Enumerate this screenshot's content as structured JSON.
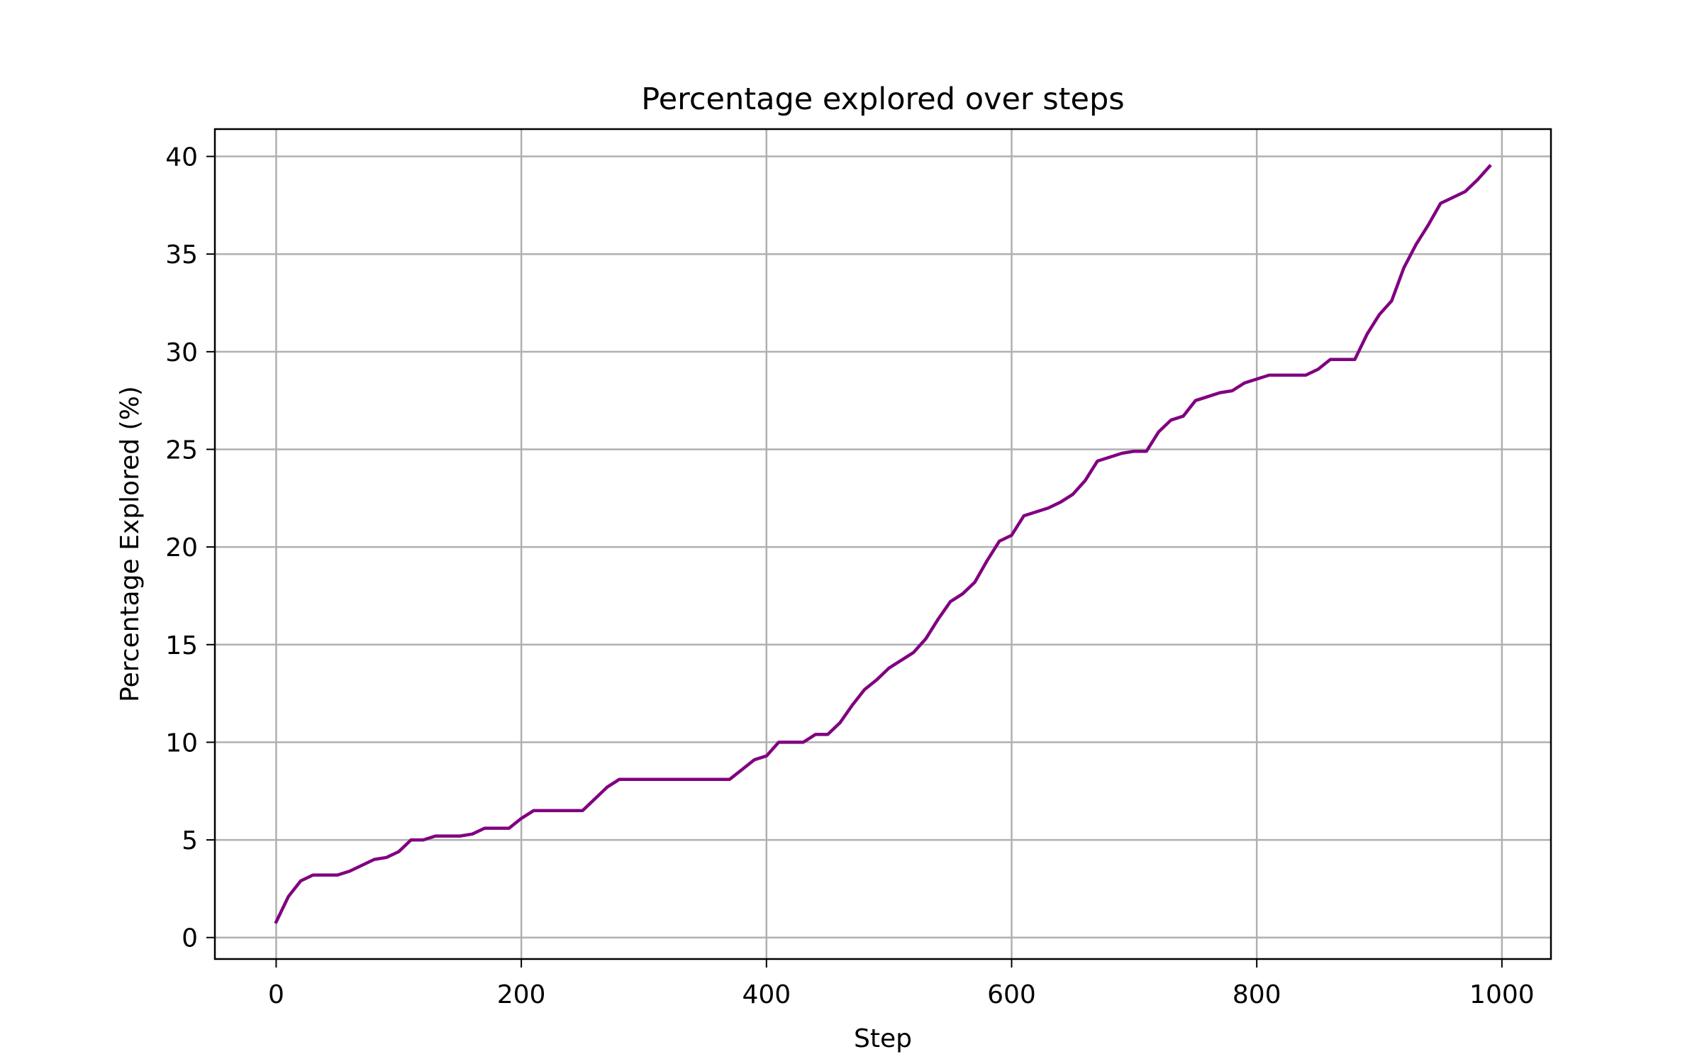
{
  "chart_data": {
    "type": "line",
    "title": "Percentage explored over steps",
    "xlabel": "Step",
    "ylabel": "Percentage Explored (%)",
    "xlim": [
      -50,
      1040
    ],
    "ylim": [
      -1.1,
      41.4
    ],
    "xticks": [
      0,
      200,
      400,
      600,
      800,
      1000
    ],
    "yticks": [
      0,
      5,
      10,
      15,
      20,
      25,
      30,
      35,
      40
    ],
    "grid": true,
    "legend": "none",
    "series": [
      {
        "color": "#800080",
        "x": [
          0,
          10,
          20,
          30,
          40,
          50,
          60,
          70,
          80,
          90,
          100,
          110,
          120,
          130,
          140,
          150,
          160,
          170,
          180,
          190,
          200,
          210,
          220,
          230,
          240,
          250,
          260,
          270,
          280,
          290,
          300,
          310,
          320,
          330,
          340,
          350,
          360,
          370,
          380,
          390,
          400,
          410,
          420,
          430,
          440,
          450,
          460,
          470,
          480,
          490,
          500,
          510,
          520,
          530,
          540,
          550,
          560,
          570,
          580,
          590,
          600,
          610,
          620,
          630,
          640,
          650,
          660,
          670,
          680,
          690,
          700,
          710,
          720,
          730,
          740,
          750,
          760,
          770,
          780,
          790,
          800,
          810,
          820,
          830,
          840,
          850,
          860,
          870,
          880,
          890,
          900,
          910,
          920,
          930,
          940,
          950,
          960,
          970,
          980,
          990
        ],
        "y": [
          0.8,
          2.1,
          2.9,
          3.2,
          3.2,
          3.2,
          3.4,
          3.7,
          4.0,
          4.1,
          4.4,
          5.0,
          5.0,
          5.2,
          5.2,
          5.2,
          5.3,
          5.6,
          5.6,
          5.6,
          6.1,
          6.5,
          6.5,
          6.5,
          6.5,
          6.5,
          7.1,
          7.7,
          8.1,
          8.1,
          8.1,
          8.1,
          8.1,
          8.1,
          8.1,
          8.1,
          8.1,
          8.1,
          8.6,
          9.1,
          9.3,
          10.0,
          10.0,
          10.0,
          10.4,
          10.4,
          11.0,
          11.9,
          12.7,
          13.2,
          13.8,
          14.2,
          14.6,
          15.3,
          16.3,
          17.2,
          17.6,
          18.2,
          19.3,
          20.3,
          20.6,
          21.6,
          21.8,
          22.0,
          22.3,
          22.7,
          23.4,
          24.4,
          24.6,
          24.8,
          24.9,
          24.9,
          25.9,
          26.5,
          26.7,
          27.5,
          27.7,
          27.9,
          28.0,
          28.4,
          28.6,
          28.8,
          28.8,
          28.8,
          28.8,
          29.1,
          29.6,
          29.6,
          29.6,
          30.9,
          31.9,
          32.6,
          34.3,
          35.5,
          36.5,
          37.6,
          37.9,
          38.2,
          38.8,
          39.5
        ]
      }
    ]
  }
}
